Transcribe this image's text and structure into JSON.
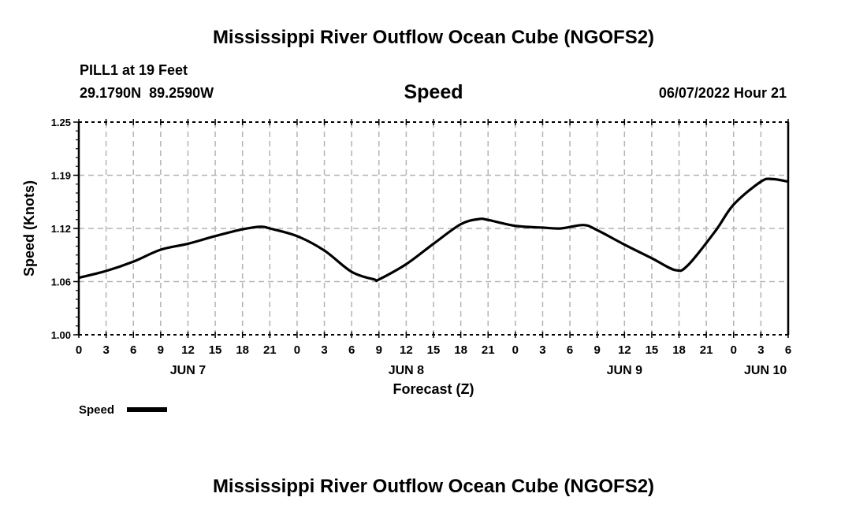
{
  "title": "Mississippi River Outflow Ocean Cube (NGOFS2)",
  "station": "PILL1 at 19 Feet",
  "coords": "29.1790N  89.2590W",
  "variable": "Speed",
  "timestamp": "06/07/2022 Hour 21",
  "footer_title": "Mississippi River Outflow Ocean Cube (NGOFS2)",
  "colors": {
    "line": "#000000",
    "grid": "#b4b4b4"
  },
  "chart_data": {
    "type": "line",
    "title": "Speed",
    "xlabel": "Forecast (Z)",
    "ylabel": "Speed (Knots)",
    "xlim": [
      0,
      78
    ],
    "ylim": [
      1.0,
      1.25
    ],
    "grid": true,
    "y_ticks": [
      1.0,
      1.0625,
      1.125,
      1.1875,
      1.25
    ],
    "y_tick_labels": [
      "1.00",
      "1.06",
      "1.12",
      "1.19",
      "1.25"
    ],
    "x_ticks": [
      0,
      3,
      6,
      9,
      12,
      15,
      18,
      21,
      24,
      27,
      30,
      33,
      36,
      39,
      42,
      45,
      48,
      51,
      54,
      57,
      60,
      63,
      66,
      69,
      72,
      75,
      78
    ],
    "x_tick_labels": [
      "0",
      "3",
      "6",
      "9",
      "12",
      "15",
      "18",
      "21",
      "0",
      "3",
      "6",
      "9",
      "12",
      "15",
      "18",
      "21",
      "0",
      "3",
      "6",
      "9",
      "12",
      "15",
      "18",
      "21",
      "0",
      "3",
      "6"
    ],
    "date_labels": [
      {
        "label": "JUN 7",
        "hour": 12
      },
      {
        "label": "JUN 8",
        "hour": 36
      },
      {
        "label": "JUN 9",
        "hour": 60
      },
      {
        "label": "JUN 10",
        "hour": 75.5
      }
    ],
    "legend": {
      "entries": [
        "Speed"
      ],
      "placement": "bottom-left"
    },
    "series": [
      {
        "name": "Speed",
        "x": [
          0,
          3,
          6,
          9,
          12,
          15,
          18,
          20,
          21,
          24,
          27,
          30,
          32.5,
          33,
          36,
          39,
          42,
          44,
          45,
          48,
          51,
          53,
          55.5,
          57,
          60,
          63,
          65.6,
          67,
          70,
          72,
          75,
          76.3,
          78
        ],
        "values": [
          1.067,
          1.075,
          1.086,
          1.1,
          1.107,
          1.116,
          1.124,
          1.127,
          1.125,
          1.116,
          1.099,
          1.074,
          1.065,
          1.065,
          1.083,
          1.107,
          1.13,
          1.136,
          1.135,
          1.128,
          1.126,
          1.125,
          1.129,
          1.123,
          1.106,
          1.09,
          1.076,
          1.082,
          1.122,
          1.153,
          1.18,
          1.183,
          1.18
        ]
      }
    ]
  }
}
